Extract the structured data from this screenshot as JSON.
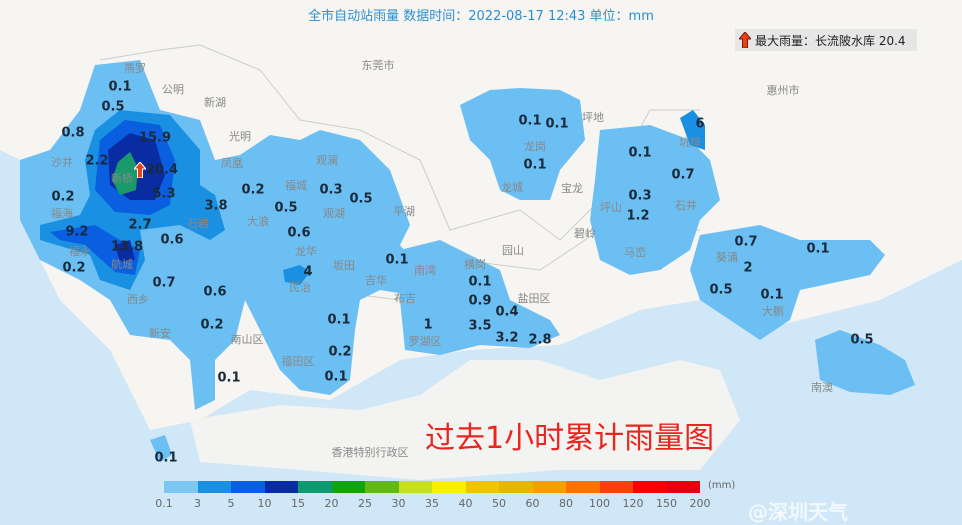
{
  "header": {
    "title": "全市自动站雨量  数据时间：2022-08-17 12:43  单位：mm"
  },
  "max_rain": {
    "label": "最大雨量：长流陂水库 20.4",
    "icon": "red-up-arrow-icon",
    "station": "长流陂水库",
    "value": 20.4
  },
  "map_title": "过去1小时累计雨量图",
  "watermark": "@深圳天气",
  "places": [
    "燕罗",
    "公明",
    "新湖",
    "光明",
    "沙井",
    "新桥",
    "凤凰",
    "福海",
    "石岩",
    "福永",
    "航城",
    "西乡",
    "新安",
    "南山区",
    "大浪",
    "福城",
    "观澜",
    "观湖",
    "龙华",
    "坂田",
    "民治",
    "吉华",
    "南湾",
    "平湖",
    "布吉",
    "罗湖区",
    "福田区",
    "东莞市",
    "横岗",
    "园山",
    "盐田区",
    "碧岭",
    "宝龙",
    "龙城",
    "龙岗",
    "坪地",
    "坪山",
    "马峦",
    "石井",
    "坑梓",
    "葵涌",
    "大鹏",
    "南澳",
    "惠州市",
    "香港特别行政区"
  ],
  "readings": [
    "0.1",
    "0.5",
    "0.8",
    "15.9",
    "2.2",
    "20.4",
    "0.2",
    "5.3",
    "3.8",
    "2.7",
    "9.2",
    "0.6",
    "13.8",
    "0.2",
    "0.7",
    "0.6",
    "0.2",
    "0.1",
    "0.1",
    "0.2",
    "0.5",
    "0.3",
    "0.5",
    "0.6",
    "4",
    "0.1",
    "0.1",
    "0.2",
    "0.1",
    "1",
    "0.1",
    "0.9",
    "0.4",
    "3.5",
    "3.2",
    "2.8",
    "0.1",
    "0.1",
    "0.1",
    "0.1",
    "0.7",
    "0.3",
    "1.2",
    "6",
    "0.7",
    "2",
    "0.5",
    "0.1",
    "0.1",
    "0.5"
  ],
  "legend": {
    "unit": "(mm)",
    "ticks": [
      "0.1",
      "3",
      "5",
      "10",
      "15",
      "20",
      "25",
      "30",
      "35",
      "40",
      "50",
      "60",
      "80",
      "100",
      "120",
      "150",
      "200"
    ],
    "colors": [
      "#7cc6f2",
      "#1a90e2",
      "#0a5ee0",
      "#0a2ca2",
      "#0d9a6e",
      "#12a212",
      "#62b81a",
      "#c6e020",
      "#f8f000",
      "#f0c400",
      "#e6b600",
      "#f0a000",
      "#f87200",
      "#f84012",
      "#f80000",
      "#e40012"
    ]
  },
  "colors": {
    "sea": "#cfe7f7",
    "land": "#f9f8f6",
    "rain_light": "#6cbff2",
    "rain_3": "#1a90e2",
    "rain_5": "#0a5ee0",
    "rain_10": "#0a2ca2",
    "rain_15": "#1a9a6a",
    "title": "#e8251f"
  }
}
